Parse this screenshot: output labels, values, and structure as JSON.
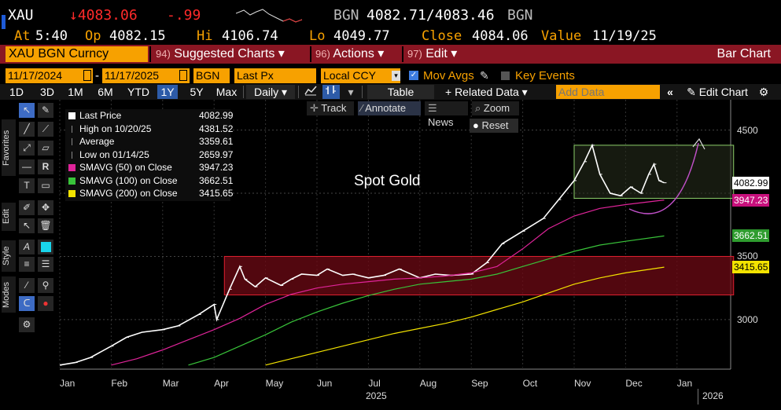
{
  "ticker": {
    "symbol": "XAU",
    "last": "↓4083.06",
    "change": "-.99",
    "bid_source": "BGN",
    "bid_ask": "4082.71/4083.46",
    "ask_source": "BGN"
  },
  "quote": {
    "at_label": "At",
    "time": "5:40",
    "op_label": "Op",
    "open": "4082.15",
    "hi_label": "Hi",
    "high": "4106.74",
    "lo_label": "Lo",
    "low": "4049.77",
    "close_label": "Close",
    "close": "4084.06",
    "value_label": "Value",
    "value_date": "11/19/25"
  },
  "menu": {
    "security": "XAU BGN Curncy",
    "suggested_num": "94)",
    "suggested": "Suggested Charts ▾",
    "actions_num": "96)",
    "actions": "Actions ▾",
    "edit_num": "97)",
    "edit": "Edit ▾",
    "chart_type": "Bar Chart"
  },
  "settings": {
    "start_date": "11/17/2024",
    "end_date": "11/17/2025",
    "source": "BGN",
    "field": "Last Px",
    "currency": "Local CCY",
    "mov_avgs": "Mov Avgs",
    "key_events": "Key Events"
  },
  "toolbar": {
    "periods": [
      "1D",
      "3D",
      "1M",
      "6M",
      "YTD",
      "1Y",
      "5Y",
      "Max"
    ],
    "active_period": "1Y",
    "frequency": "Daily ▾",
    "table": "Table",
    "related": "+ Related Data ▾",
    "add_data_placeholder": "Add Data",
    "edit_chart": "Edit Chart"
  },
  "chart_tools": {
    "track": "Track",
    "annotate": "Annotate",
    "news": "News",
    "zoom": "Zoom",
    "reset": "Reset"
  },
  "side_tabs": {
    "favorites": "Favorites",
    "edit": "Edit",
    "style": "Style",
    "modes": "Modes"
  },
  "legend": [
    {
      "label": "Last Price",
      "value": "4082.99",
      "color": "#ffffff"
    },
    {
      "label": "High on 10/20/25",
      "value": "4381.52",
      "color": "#888888"
    },
    {
      "label": "Average",
      "value": "3359.61",
      "color": "#888888"
    },
    {
      "label": "Low on 01/14/25",
      "value": "2659.97",
      "color": "#888888"
    },
    {
      "label": "SMAVG (50)  on Close",
      "value": "3947.23",
      "color": "#e0249a"
    },
    {
      "label": "SMAVG (100)  on Close",
      "value": "3662.51",
      "color": "#39c43a"
    },
    {
      "label": "SMAVG (200)  on Close",
      "value": "3415.65",
      "color": "#f3e300"
    }
  ],
  "chart_data": {
    "type": "line",
    "title": "Spot Gold",
    "x_months": [
      "Jan",
      "Feb",
      "Mar",
      "Apr",
      "May",
      "Jun",
      "Jul",
      "Aug",
      "Sep",
      "Oct",
      "Nov",
      "Dec",
      "Jan"
    ],
    "x_years": [
      "2025",
      "2026"
    ],
    "y_ticks": [
      3000,
      3500,
      4500
    ],
    "ylim": [
      2620,
      4740
    ],
    "series": [
      {
        "name": "Last Price",
        "color": "#ffffff",
        "points": [
          [
            0,
            2640
          ],
          [
            0.3,
            2660
          ],
          [
            0.6,
            2700
          ],
          [
            1.0,
            2790
          ],
          [
            1.3,
            2860
          ],
          [
            1.6,
            2900
          ],
          [
            2.0,
            2920
          ],
          [
            2.3,
            2950
          ],
          [
            2.7,
            3040
          ],
          [
            3.0,
            3120
          ],
          [
            3.05,
            3000
          ],
          [
            3.3,
            3240
          ],
          [
            3.5,
            3420
          ],
          [
            3.6,
            3320
          ],
          [
            3.8,
            3260
          ],
          [
            4.0,
            3330
          ],
          [
            4.3,
            3270
          ],
          [
            4.5,
            3320
          ],
          [
            4.7,
            3360
          ],
          [
            5.0,
            3350
          ],
          [
            5.2,
            3400
          ],
          [
            5.5,
            3350
          ],
          [
            5.7,
            3360
          ],
          [
            6.0,
            3330
          ],
          [
            6.3,
            3350
          ],
          [
            6.6,
            3400
          ],
          [
            7.0,
            3330
          ],
          [
            7.3,
            3360
          ],
          [
            7.6,
            3350
          ],
          [
            8.0,
            3360
          ],
          [
            8.3,
            3450
          ],
          [
            8.6,
            3600
          ],
          [
            9.0,
            3700
          ],
          [
            9.4,
            3800
          ],
          [
            9.7,
            3950
          ],
          [
            10.0,
            4100
          ],
          [
            10.2,
            4250
          ],
          [
            10.35,
            4380
          ],
          [
            10.5,
            4150
          ],
          [
            10.7,
            4000
          ],
          [
            10.9,
            3980
          ],
          [
            11.1,
            4050
          ],
          [
            11.3,
            4000
          ],
          [
            11.45,
            4150
          ],
          [
            11.55,
            4230
          ],
          [
            11.65,
            4100
          ],
          [
            11.75,
            4083
          ]
        ]
      },
      {
        "name": "SMAVG (50)",
        "color": "#e0249a",
        "points": [
          [
            1.0,
            2640
          ],
          [
            1.5,
            2690
          ],
          [
            2.0,
            2760
          ],
          [
            2.5,
            2840
          ],
          [
            3.0,
            2920
          ],
          [
            3.5,
            3010
          ],
          [
            4.0,
            3120
          ],
          [
            4.5,
            3200
          ],
          [
            5.0,
            3250
          ],
          [
            5.5,
            3280
          ],
          [
            6.0,
            3300
          ],
          [
            6.5,
            3320
          ],
          [
            7.0,
            3330
          ],
          [
            7.5,
            3345
          ],
          [
            8.0,
            3370
          ],
          [
            8.5,
            3420
          ],
          [
            9.0,
            3560
          ],
          [
            9.5,
            3720
          ],
          [
            10.0,
            3820
          ],
          [
            10.5,
            3880
          ],
          [
            11.0,
            3910
          ],
          [
            11.75,
            3947
          ]
        ]
      },
      {
        "name": "SMAVG (100)",
        "color": "#39c43a",
        "points": [
          [
            2.5,
            2640
          ],
          [
            3.0,
            2700
          ],
          [
            3.5,
            2790
          ],
          [
            4.0,
            2880
          ],
          [
            4.5,
            2980
          ],
          [
            5.0,
            3060
          ],
          [
            5.5,
            3130
          ],
          [
            6.0,
            3190
          ],
          [
            6.5,
            3240
          ],
          [
            7.0,
            3280
          ],
          [
            7.5,
            3300
          ],
          [
            8.0,
            3320
          ],
          [
            8.5,
            3360
          ],
          [
            9.0,
            3420
          ],
          [
            9.5,
            3480
          ],
          [
            10.0,
            3540
          ],
          [
            10.5,
            3590
          ],
          [
            11.0,
            3620
          ],
          [
            11.75,
            3662
          ]
        ]
      },
      {
        "name": "SMAVG (200)",
        "color": "#f3e300",
        "points": [
          [
            4.0,
            2640
          ],
          [
            4.5,
            2690
          ],
          [
            5.0,
            2740
          ],
          [
            5.5,
            2790
          ],
          [
            6.0,
            2840
          ],
          [
            6.5,
            2890
          ],
          [
            7.0,
            2930
          ],
          [
            7.5,
            2970
          ],
          [
            8.0,
            3020
          ],
          [
            8.5,
            3080
          ],
          [
            9.0,
            3140
          ],
          [
            9.5,
            3210
          ],
          [
            10.0,
            3280
          ],
          [
            10.5,
            3330
          ],
          [
            11.0,
            3370
          ],
          [
            11.75,
            3415
          ]
        ]
      }
    ],
    "zones": [
      {
        "name": "lower-range-box",
        "x": [
          3.2,
          13.1
        ],
        "y": [
          3195,
          3500
        ]
      },
      {
        "name": "upper-range-box",
        "x": [
          10.0,
          13.1
        ],
        "y": [
          3960,
          4380
        ]
      }
    ]
  },
  "price_flags": [
    {
      "value": "4082.99",
      "bg": "#ffffff",
      "fg": "#000000"
    },
    {
      "value": "3947.23",
      "bg": "#c8107c",
      "fg": "#ffffff"
    },
    {
      "value": "3662.51",
      "bg": "#2e9c2e",
      "fg": "#ffffff"
    },
    {
      "value": "3415.65",
      "bg": "#f3e300",
      "fg": "#000000"
    }
  ],
  "colors": {
    "amber": "#f7a100",
    "menu_red": "#8a1623",
    "active_blue": "#2d5ba8"
  }
}
